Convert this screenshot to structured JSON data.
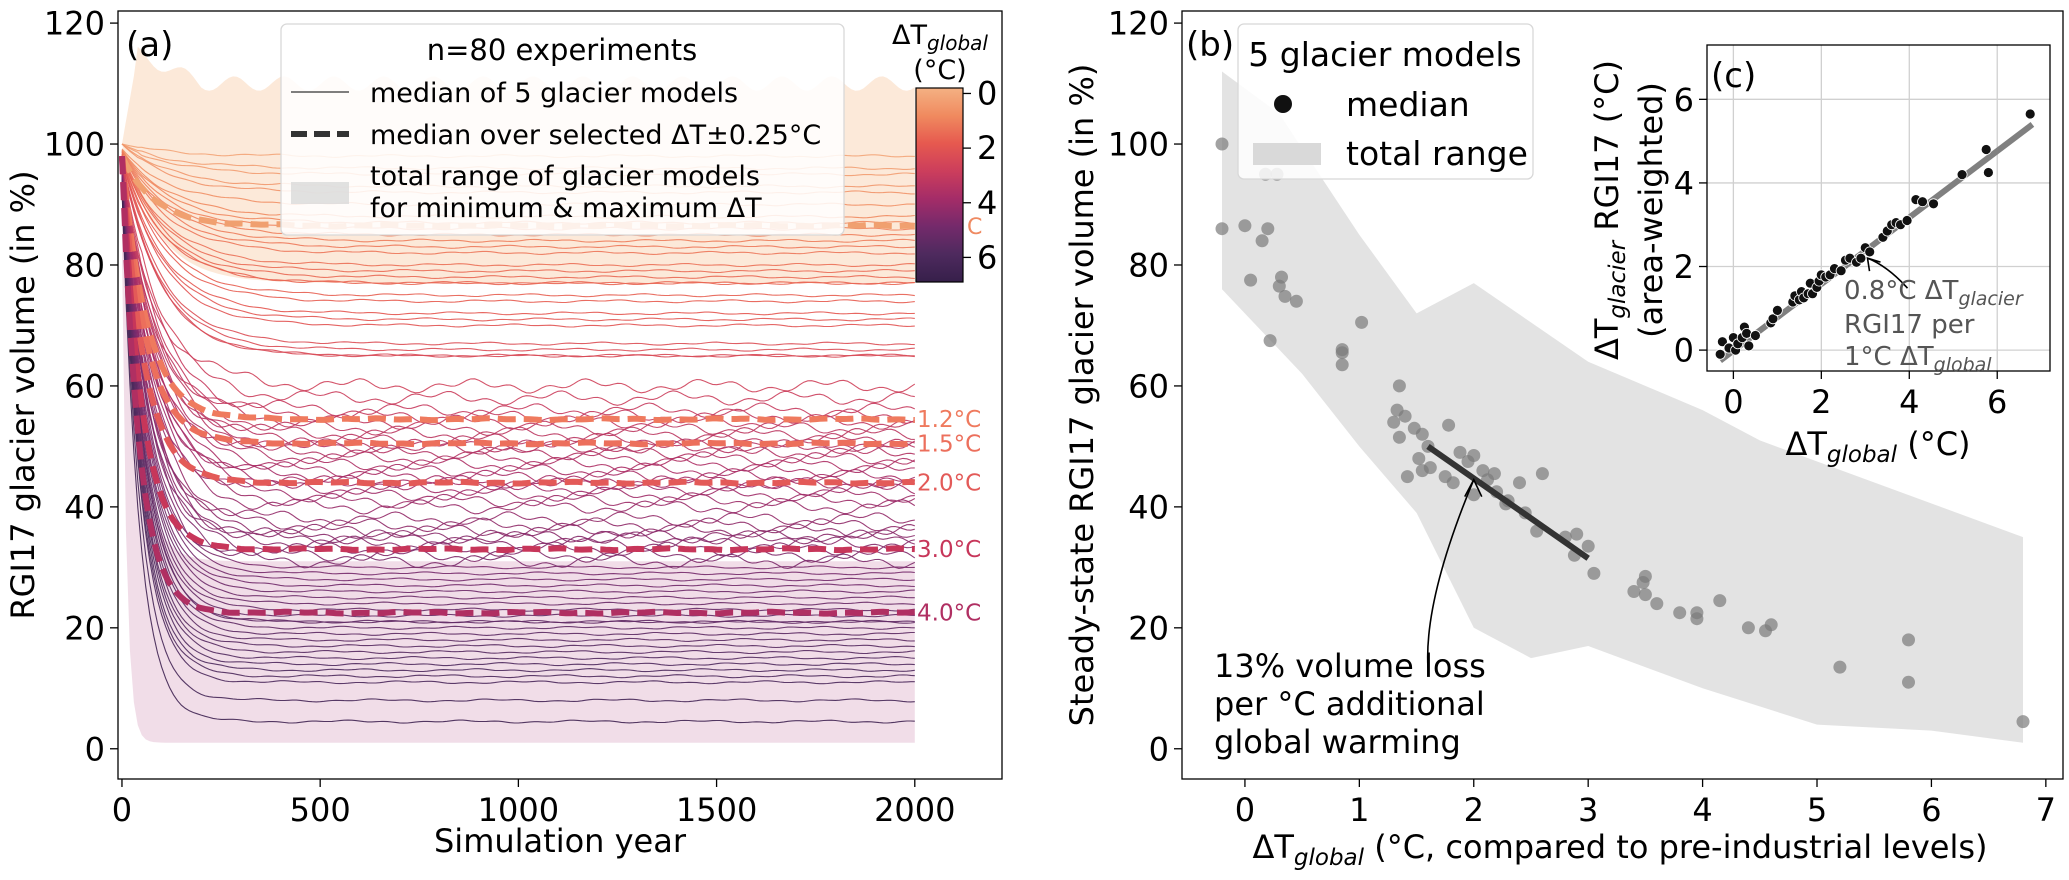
{
  "chart_data": [
    {
      "panel": "(a)",
      "type": "line",
      "xlabel": "Simulation year",
      "ylabel": "RGI17 glacier volume (in %)",
      "xlim": [
        -10,
        2220
      ],
      "ylim": [
        -5,
        122
      ],
      "xticks": [
        0,
        500,
        1000,
        1500,
        2000
      ],
      "yticks": [
        0,
        20,
        40,
        60,
        80,
        100,
        120
      ],
      "grid": false,
      "legend": {
        "position": "top-center",
        "title": "n=80 experiments",
        "entries": [
          "median of 5 glacier models",
          "median over selected ΔT±0.25°C",
          "total range of glacier models",
          "for minimum & maximum ΔT"
        ]
      },
      "colorbar": {
        "title_main": "ΔT",
        "title_sub": "global",
        "title_unit": "(°C)",
        "range": [
          -0.2,
          6.9
        ],
        "ticks": [
          0,
          2,
          4,
          6
        ],
        "colors": [
          "#f4b183",
          "#f08a5f",
          "#e6594f",
          "#cc3e5c",
          "#a42c68",
          "#742a6b",
          "#4e2a5e",
          "#361f4a"
        ]
      },
      "ranges": [
        {
          "name": "minimum ΔT",
          "color": "#fbe2cc",
          "peak": 115,
          "upper": 110,
          "lower": 77,
          "start": 100
        },
        {
          "name": "maximum ΔT",
          "color": "#ecd1e0",
          "upper": 31,
          "lower": 1,
          "start": 90
        }
      ],
      "highlight_labels": [
        {
          "label": "1.2°C",
          "value": 54.5,
          "color": "#ef7a5e"
        },
        {
          "label": "1.5°C",
          "value": 50.5,
          "color": "#ec6f5c"
        },
        {
          "label": "2.0°C",
          "value": 44.0,
          "color": "#e35a58"
        },
        {
          "label": "3.0°C",
          "value": 33.0,
          "color": "#c7365a"
        },
        {
          "label": "4.0°C",
          "value": 22.5,
          "color": "#b02f62"
        }
      ],
      "partial_label": "C",
      "series_final_volume": [
        98,
        96,
        95,
        93,
        92,
        90,
        88,
        87,
        86,
        85,
        84,
        83,
        82,
        80,
        79,
        78,
        77,
        77,
        75,
        74,
        72,
        71,
        70,
        67,
        66,
        65,
        65,
        60,
        58,
        56,
        55,
        54,
        53,
        52,
        51,
        50,
        50,
        49,
        48,
        47,
        46,
        45,
        44,
        44,
        43,
        42,
        41,
        40,
        38,
        37,
        36,
        35,
        35,
        34,
        33,
        32,
        31,
        30,
        29,
        28,
        27,
        26,
        25,
        24,
        23,
        22,
        21,
        21,
        20,
        19,
        18,
        17,
        16,
        15,
        14,
        13,
        12,
        11,
        8,
        4.5
      ],
      "series_note": "80 experiment median curves decaying from ~100% to the final volumes listed; colour encodes ΔT_global"
    },
    {
      "panel": "(b)",
      "type": "scatter",
      "xlabel_main": "ΔT",
      "xlabel_sub": "global",
      "xlabel_rest": " (°C, compared to pre-industrial levels)",
      "ylabel": "Steady-state RGI17 glacier volume (in %)",
      "xlim": [
        -0.55,
        7.15
      ],
      "ylim": [
        -5,
        122
      ],
      "xticks": [
        0,
        1,
        2,
        3,
        4,
        5,
        6,
        7
      ],
      "yticks": [
        0,
        20,
        40,
        60,
        80,
        100,
        120
      ],
      "legend": {
        "position": "top-left",
        "title": "5 glacier models",
        "entries": [
          "median",
          "total range"
        ]
      },
      "points": [
        [
          -0.2,
          100
        ],
        [
          -0.2,
          86
        ],
        [
          0.0,
          86.5
        ],
        [
          0.2,
          86
        ],
        [
          0.15,
          84
        ],
        [
          0.3,
          98
        ],
        [
          0.28,
          95
        ],
        [
          0.18,
          95
        ],
        [
          0.05,
          77.5
        ],
        [
          0.32,
          78
        ],
        [
          0.3,
          76.5
        ],
        [
          0.35,
          74.8
        ],
        [
          0.45,
          74
        ],
        [
          0.22,
          67.5
        ],
        [
          0.85,
          66
        ],
        [
          0.85,
          65.5
        ],
        [
          0.85,
          63.5
        ],
        [
          1.02,
          70.5
        ],
        [
          1.35,
          60
        ],
        [
          1.33,
          56
        ],
        [
          1.4,
          55
        ],
        [
          1.3,
          54
        ],
        [
          1.48,
          53
        ],
        [
          1.35,
          51.5
        ],
        [
          1.55,
          52
        ],
        [
          1.6,
          50
        ],
        [
          1.52,
          48
        ],
        [
          1.55,
          46
        ],
        [
          1.62,
          46.5
        ],
        [
          1.75,
          45
        ],
        [
          1.78,
          53.5
        ],
        [
          1.88,
          49
        ],
        [
          1.95,
          47.5
        ],
        [
          2.0,
          48.5
        ],
        [
          2.08,
          46
        ],
        [
          2.12,
          44.5
        ],
        [
          2.2,
          42.5
        ],
        [
          2.18,
          45.5
        ],
        [
          2.0,
          42
        ],
        [
          2.28,
          40.5
        ],
        [
          2.3,
          41
        ],
        [
          1.42,
          45
        ],
        [
          1.82,
          44
        ],
        [
          2.4,
          44
        ],
        [
          2.6,
          45.5
        ],
        [
          2.45,
          39
        ],
        [
          2.55,
          36
        ],
        [
          2.8,
          35
        ],
        [
          2.9,
          35.5
        ],
        [
          3.0,
          33.5
        ],
        [
          2.88,
          32
        ],
        [
          3.05,
          29
        ],
        [
          3.4,
          26
        ],
        [
          3.5,
          25.5
        ],
        [
          3.5,
          28.5
        ],
        [
          3.48,
          27.5
        ],
        [
          3.6,
          24
        ],
        [
          3.8,
          22.5
        ],
        [
          3.95,
          21.5
        ],
        [
          3.95,
          22.5
        ],
        [
          4.15,
          24.5
        ],
        [
          4.4,
          20
        ],
        [
          4.55,
          19.5
        ],
        [
          4.6,
          20.5
        ],
        [
          5.2,
          13.5
        ],
        [
          5.8,
          18
        ],
        [
          5.8,
          11
        ],
        [
          6.8,
          4.5
        ]
      ],
      "range_upper": [
        [
          -0.2,
          112
        ],
        [
          0.3,
          105
        ],
        [
          1.0,
          85
        ],
        [
          1.5,
          72
        ],
        [
          2.0,
          77
        ],
        [
          3.0,
          64
        ],
        [
          4.0,
          56
        ],
        [
          4.5,
          51
        ],
        [
          6.8,
          35
        ]
      ],
      "range_lower": [
        [
          -0.2,
          76
        ],
        [
          0.5,
          62
        ],
        [
          1.0,
          50
        ],
        [
          1.5,
          39
        ],
        [
          2.0,
          20
        ],
        [
          2.5,
          15
        ],
        [
          3.0,
          17
        ],
        [
          4.0,
          10
        ],
        [
          5.0,
          4
        ],
        [
          6.0,
          3
        ],
        [
          6.8,
          1
        ]
      ],
      "trend": {
        "x": [
          1.6,
          3.0
        ],
        "y": [
          50,
          31.5
        ],
        "color": "#333333"
      },
      "annotation": [
        "13% volume loss",
        "per °C additional",
        "global warming"
      ]
    },
    {
      "panel": "(c)",
      "type": "scatter",
      "xlabel_main": "ΔT",
      "xlabel_sub": "global",
      "xlabel_rest": " (°C)",
      "ylabel_main": "ΔT",
      "ylabel_sub": "glacier",
      "ylabel_rest": " RGI17 (°C)",
      "ylabel_line2": "(area-weighted)",
      "xlim": [
        -0.6,
        7.2
      ],
      "ylim": [
        -0.5,
        7.3
      ],
      "xticks": [
        0,
        2,
        4,
        6
      ],
      "yticks": [
        0,
        2,
        4,
        6
      ],
      "grid": true,
      "points": [
        [
          -0.3,
          -0.1
        ],
        [
          -0.25,
          0.2
        ],
        [
          -0.1,
          0.05
        ],
        [
          0.0,
          0.3
        ],
        [
          0.05,
          0.0
        ],
        [
          0.1,
          0.15
        ],
        [
          0.2,
          0.3
        ],
        [
          0.25,
          0.55
        ],
        [
          0.3,
          0.4
        ],
        [
          0.35,
          0.1
        ],
        [
          0.5,
          0.35
        ],
        [
          0.85,
          0.65
        ],
        [
          0.9,
          0.75
        ],
        [
          1.0,
          0.95
        ],
        [
          1.35,
          1.15
        ],
        [
          1.4,
          1.3
        ],
        [
          1.5,
          1.2
        ],
        [
          1.55,
          1.4
        ],
        [
          1.6,
          1.25
        ],
        [
          1.7,
          1.35
        ],
        [
          1.75,
          1.6
        ],
        [
          1.8,
          1.35
        ],
        [
          1.9,
          1.5
        ],
        [
          1.95,
          1.65
        ],
        [
          2.0,
          1.8
        ],
        [
          2.1,
          1.75
        ],
        [
          2.2,
          1.8
        ],
        [
          2.3,
          1.95
        ],
        [
          2.45,
          1.9
        ],
        [
          2.55,
          2.15
        ],
        [
          2.65,
          2.2
        ],
        [
          2.8,
          2.1
        ],
        [
          2.9,
          2.2
        ],
        [
          3.0,
          2.45
        ],
        [
          3.1,
          2.35
        ],
        [
          3.4,
          2.7
        ],
        [
          3.5,
          2.85
        ],
        [
          3.6,
          3.0
        ],
        [
          3.7,
          3.05
        ],
        [
          3.8,
          3.0
        ],
        [
          3.95,
          3.1
        ],
        [
          4.15,
          3.6
        ],
        [
          4.3,
          3.55
        ],
        [
          4.55,
          3.5
        ],
        [
          5.2,
          4.2
        ],
        [
          5.75,
          4.8
        ],
        [
          5.8,
          4.25
        ],
        [
          6.75,
          5.65
        ]
      ],
      "fit": {
        "x": [
          -0.3,
          6.8
        ],
        "y": [
          -0.25,
          5.4
        ],
        "color": "#808080"
      },
      "annotation_line1_main": "0.8°C ΔT",
      "annotation_line1_sub": "glacier",
      "annotation_line2": "RGI17 per",
      "annotation_line3_main": "1°C ΔT",
      "annotation_line3_sub": "global"
    }
  ]
}
